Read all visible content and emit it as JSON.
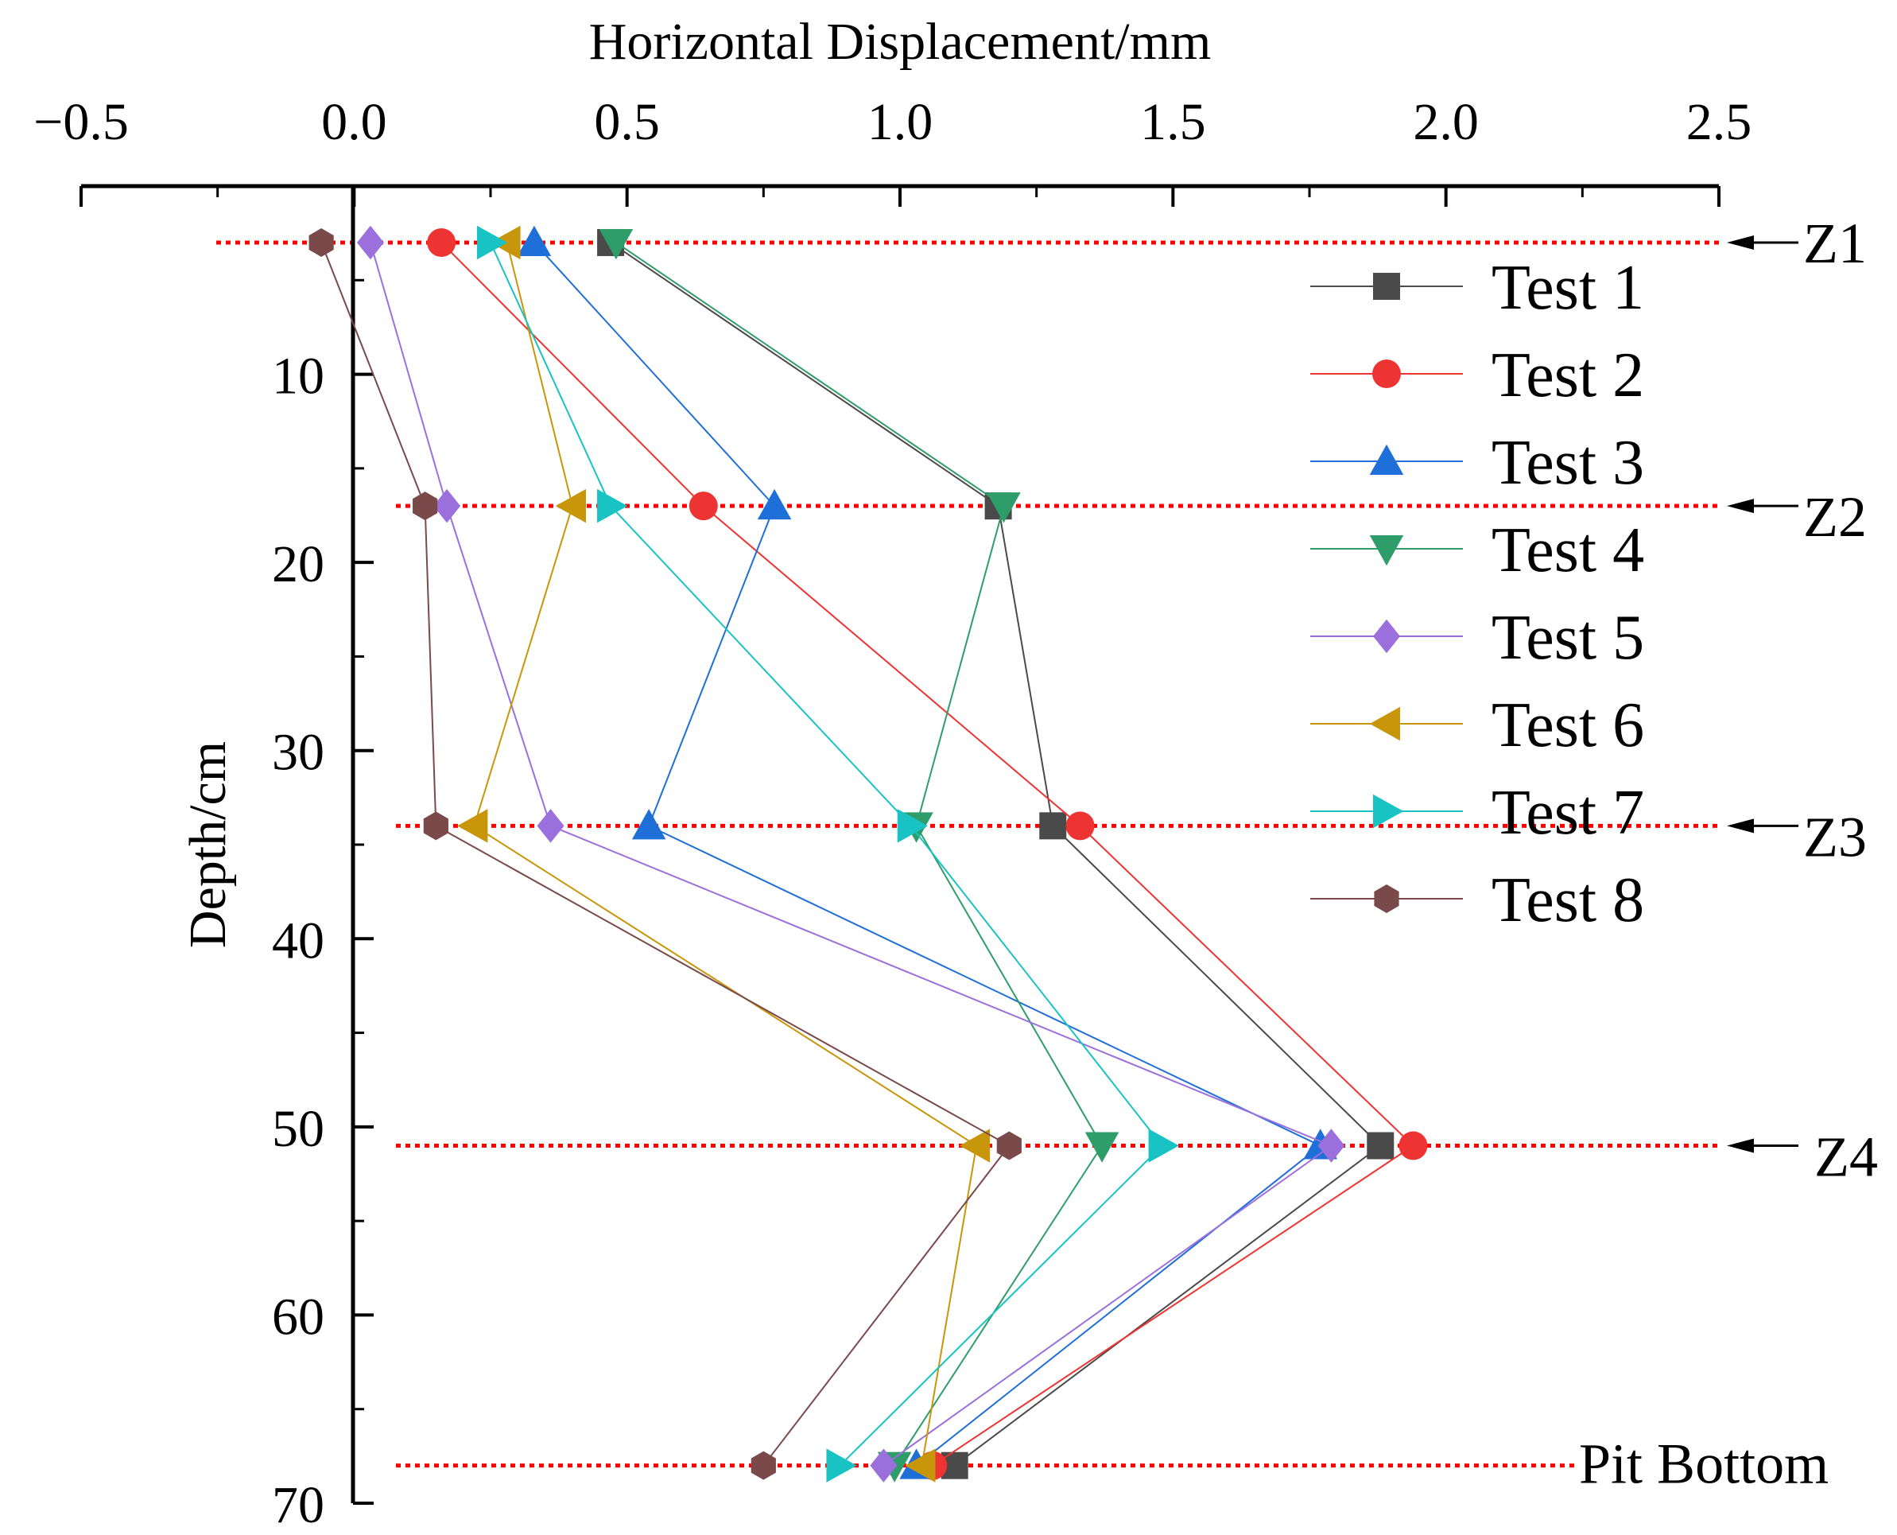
{
  "chart_data": {
    "type": "line",
    "xlabel": "Horizontal Displacement/mm",
    "ylabel": "Depth/cm",
    "xlim": [
      -0.5,
      2.5
    ],
    "ylim": [
      0,
      70
    ],
    "x_ticks": [
      -0.5,
      0.0,
      0.5,
      1.0,
      1.5,
      2.0,
      2.5
    ],
    "x_tick_labels": [
      "−0.5",
      "0.0",
      "0.5",
      "1.0",
      "1.5",
      "2.0",
      "2.5"
    ],
    "y_ticks": [
      10,
      20,
      30,
      40,
      50,
      60,
      70
    ],
    "y_tick_labels": [
      "10",
      "20",
      "30",
      "40",
      "50",
      "60",
      "70"
    ],
    "depths": [
      3,
      17,
      34,
      51,
      68
    ],
    "series": [
      {
        "name": "Test 1",
        "color": "#4a4a4a",
        "marker": "square",
        "values": [
          0.47,
          1.18,
          1.28,
          1.88,
          1.1
        ]
      },
      {
        "name": "Test 2",
        "color": "#ee3333",
        "marker": "circle",
        "values": [
          0.16,
          0.64,
          1.33,
          1.94,
          1.06
        ]
      },
      {
        "name": "Test 3",
        "color": "#1f6fd8",
        "marker": "triangle-up",
        "values": [
          0.33,
          0.77,
          0.54,
          1.77,
          1.03
        ]
      },
      {
        "name": "Test 4",
        "color": "#2e9d6a",
        "marker": "triangle-down",
        "values": [
          0.48,
          1.19,
          1.03,
          1.37,
          0.99
        ]
      },
      {
        "name": "Test 5",
        "color": "#9b6fdc",
        "marker": "diamond",
        "values": [
          0.03,
          0.17,
          0.36,
          1.79,
          0.97
        ]
      },
      {
        "name": "Test 6",
        "color": "#c8960a",
        "marker": "triangle-left",
        "values": [
          0.28,
          0.4,
          0.22,
          1.14,
          1.04
        ]
      },
      {
        "name": "Test 7",
        "color": "#19c3c3",
        "marker": "triangle-right",
        "values": [
          0.25,
          0.47,
          1.02,
          1.48,
          0.89
        ]
      },
      {
        "name": "Test 8",
        "color": "#7a4a4a",
        "marker": "hexagon",
        "values": [
          -0.06,
          0.13,
          0.15,
          1.2,
          0.75
        ]
      }
    ],
    "reference_lines": [
      {
        "label": "Z1",
        "depth": 3
      },
      {
        "label": "Z2",
        "depth": 17
      },
      {
        "label": "Z3",
        "depth": 34
      },
      {
        "label": "Z4",
        "depth": 51
      },
      {
        "label": "Pit Bottom",
        "depth": 68
      }
    ],
    "reference_line_color": "#ff0000",
    "legend": "top-right",
    "grid": false
  }
}
